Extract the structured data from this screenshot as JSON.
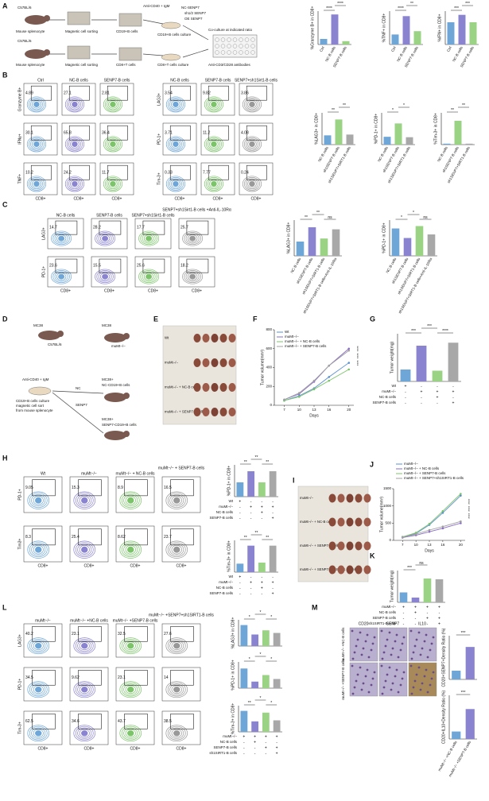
{
  "figure": {
    "letters": [
      "A",
      "B",
      "C",
      "D",
      "E",
      "F",
      "G",
      "H",
      "I",
      "J",
      "K",
      "L",
      "M"
    ],
    "schematic_a": [
      "C57BL/6",
      "Mouse splenocyte",
      "Magnetic cell sorting",
      "CD19+B cells",
      "Anti-CD40 + IgM",
      "NC-SENP7",
      "sh1/2 SENP7",
      "OE SENP7",
      "CD19+B cells culture",
      "Co-culture at indicated ratio",
      "C57BL/6",
      "Mouse splenocyte",
      "Magnetic cell sorting",
      "CD8+T cells",
      "CD8+T cells culture",
      "Anti-CD3/CD28 antibodies"
    ],
    "schematic_d": [
      "MC38",
      "C57BL/6",
      "MC38",
      "muMt−/−",
      "Anti-CD40 + IgM",
      "NC",
      "SENP7",
      "CD19+B cells culture",
      "magnetic cell sort",
      "from mouse splenocyte",
      "MC38+",
      "NC-CD19+B cells",
      "MC38+",
      "SENP7-CD19+B cells"
    ],
    "flow_b_left": {
      "columns": [
        "Ctrl",
        "NC-B cells",
        "SENP7-B cells"
      ],
      "rows": [
        "Granzyme B+",
        "IFNγ+",
        "TNF+"
      ],
      "x_label": "CD8+",
      "colors": [
        "#6ea6d8",
        "#8a84d0",
        "#7cc46a"
      ],
      "gates": [
        [
          4.89,
          27.1,
          2.81
        ],
        [
          30.1,
          65.8,
          36.4
        ],
        [
          10.2,
          24.2,
          11.7
        ]
      ]
    },
    "flow_b_right": {
      "columns": [
        "NC-B cells",
        "SENP7-B cells",
        "SENP7+sh1Sirt1-B cells"
      ],
      "rows": [
        "LAG3+",
        "PD-1+",
        "Tim-3+"
      ],
      "x_label": "CD8+",
      "colors": [
        "#6ea6d8",
        "#7cc46a",
        "#999999"
      ],
      "gates": [
        [
          3.54,
          9.82,
          3.86
        ],
        [
          3.71,
          11.2,
          4.08
        ],
        [
          0.33,
          7.77,
          0.24
        ]
      ]
    },
    "flow_c": {
      "columns": [
        "NC-B cells",
        "SENP7-B cells",
        "SENP7+sh1Sirt1-B cells",
        "SENP7+sh1Sirt1-B cells +Anti-IL-10Rα"
      ],
      "rows": [
        "LAG3+",
        "PD-1+"
      ],
      "x_label": "CD8+",
      "colors": [
        "#6ea6d8",
        "#8a84d0",
        "#7cc46a",
        "#999999"
      ],
      "gates": [
        [
          14.7,
          28.2,
          17.7,
          25.7
        ],
        [
          23.6,
          15.5,
          25.6,
          18.2
        ]
      ]
    },
    "flow_h": {
      "columns": [
        "Wt",
        "muMt−/−",
        "muMt−/− + NC-B cells",
        "muMt−/− + SENP7-B cells"
      ],
      "rows": [
        "PD-1+",
        "Tim3+"
      ],
      "x_label": "CD8+",
      "colors": [
        "#6ea6d8",
        "#8a84d0",
        "#7cc46a",
        "#999999"
      ],
      "gates": [
        [
          9.05,
          15.3,
          8.9,
          16.5
        ],
        [
          8.3,
          25.4,
          8.62,
          23.7
        ]
      ]
    },
    "flow_l": {
      "columns": [
        "muMt−/−",
        "muMt−/− +NC-B cells",
        "muMt−/− +SENP7-B cells",
        "muMt−/− +SENP7+sh1SIRT1-B cells"
      ],
      "rows": [
        "LAG3+",
        "PD-1+",
        "Tim-3+"
      ],
      "x_label": "CD8+",
      "colors": [
        "#6ea6d8",
        "#8a84d0",
        "#7cc46a",
        "#999999"
      ],
      "gates": [
        [
          40.2,
          23.1,
          32.5,
          27.6
        ],
        [
          34.5,
          9.62,
          23.1,
          14
        ],
        [
          62.5,
          34.6,
          43.7,
          38.5
        ]
      ]
    },
    "bars_a": [
      {
        "ylabel": "%Granzyme B+ in CD8+",
        "categories": [
          "Ctrl",
          "NC-B cells",
          "SENP7-B cells"
        ],
        "values": [
          5,
          27,
          3
        ],
        "ylim": [
          0,
          30
        ],
        "colors": [
          "#6ea6d8",
          "#8a84d0",
          "#9bd384"
        ],
        "sig": [
          "****",
          "****"
        ]
      },
      {
        "ylabel": "%TNF+ in CD8+",
        "categories": [
          "Ctrl",
          "NC-B cells",
          "SENP7-B cells"
        ],
        "values": [
          3,
          8.5,
          4
        ],
        "ylim": [
          0,
          10
        ],
        "colors": [
          "#6ea6d8",
          "#8a84d0",
          "#9bd384"
        ],
        "sig": [
          "****",
          "**"
        ]
      },
      {
        "ylabel": "%IFN+ in CD8+",
        "categories": [
          "Ctrl",
          "NC-B cells",
          "SENP7-B cells"
        ],
        "values": [
          30,
          40,
          30
        ],
        "ylim": [
          0,
          45
        ],
        "colors": [
          "#6ea6d8",
          "#8a84d0",
          "#9bd384"
        ],
        "sig": [
          "***",
          "***"
        ]
      }
    ],
    "bars_b": [
      {
        "ylabel": "%LAG3+ in CD8+",
        "categories": [
          "NC-B cells",
          "sh1SENP7-B cells",
          "sh1SENP7+SIRT1-B cells"
        ],
        "values": [
          3.5,
          9.5,
          3.8
        ],
        "ylim": [
          0,
          12
        ],
        "colors": [
          "#6ea6d8",
          "#9bd384",
          "#a8a8a8"
        ],
        "sig": [
          "**",
          "**"
        ]
      },
      {
        "ylabel": "%PD-1+ in CD8+",
        "categories": [
          "NC-B cells",
          "sh1SENP7-B cells",
          "sh1SENP7+SIRT1-B cells"
        ],
        "values": [
          3.7,
          10,
          3.5
        ],
        "ylim": [
          0,
          15
        ],
        "colors": [
          "#6ea6d8",
          "#9bd384",
          "#a8a8a8"
        ],
        "sig": [
          "*",
          "*"
        ]
      },
      {
        "ylabel": "%Tim-3+ in CD8+",
        "categories": [
          "NC-B cells",
          "sh1SENP7-B cells",
          "sh1SENP7+SIRT1-B cells"
        ],
        "values": [
          0.3,
          7.5,
          0.3
        ],
        "ylim": [
          0,
          10
        ],
        "colors": [
          "#6ea6d8",
          "#9bd384",
          "#a8a8a8"
        ],
        "sig": [
          "**",
          "**"
        ]
      }
    ],
    "bars_c": [
      {
        "ylabel": "%LAG3+ in CD8+",
        "categories": [
          "NC-B cells",
          "sh1SENP7-B cells",
          "sh1SENP7+SIRT1-B cells",
          "sh1SENP7+SIRT1-B cells+Anti-IL-10Rα"
        ],
        "values": [
          14,
          28,
          17,
          26
        ],
        "ylim": [
          0,
          35
        ],
        "colors": [
          "#6ea6d8",
          "#8a84d0",
          "#9bd384",
          "#a8a8a8"
        ],
        "sig": [
          "**",
          "**",
          "ns"
        ]
      },
      {
        "ylabel": "%PD-1+ in CD8+",
        "categories": [
          "NC-B cells",
          "sh1SENP7-B cells",
          "sh1SENP7+SIRT1-B cells",
          "sh1SENP7+SIRT1-B cells+Anti-IL-10Rα"
        ],
        "values": [
          23,
          15,
          25,
          18
        ],
        "ylim": [
          0,
          30
        ],
        "colors": [
          "#6ea6d8",
          "#8a84d0",
          "#9bd384",
          "#a8a8a8"
        ],
        "sig": [
          "*",
          "*",
          "ns"
        ]
      }
    ],
    "image_e": {
      "labels": [
        "Wt",
        "muMt−/−",
        "muMt−/− + NC-B cells",
        "muMt−/− + SENP7-B cells"
      ]
    },
    "line_f": {
      "type": "line",
      "ylabel": "Tumor volume(mm³)",
      "xlabel": "Days",
      "x": [
        7,
        10,
        13,
        16,
        20
      ],
      "xlim": [
        5,
        21
      ],
      "xticks": [
        7,
        10,
        13,
        16,
        20
      ],
      "ylim": [
        0,
        800
      ],
      "yticks": [
        0,
        200,
        400,
        600,
        800
      ],
      "sig": [
        "****",
        "****",
        "****"
      ],
      "series": [
        {
          "name": "Wt",
          "color": "#5b8fd0",
          "values": [
            50,
            100,
            180,
            300,
            450
          ]
        },
        {
          "name": "muMt−/−",
          "color": "#8a6cc6",
          "values": [
            60,
            120,
            250,
            420,
            600
          ]
        },
        {
          "name": "muMt−/− + NC-B cells",
          "color": "#7cc46a",
          "values": [
            50,
            90,
            170,
            260,
            380
          ]
        },
        {
          "name": "muMt−/− + SENP7-B cells",
          "color": "#a0a0a0",
          "values": [
            60,
            130,
            260,
            420,
            580
          ]
        }
      ]
    },
    "bars_g": {
      "ylabel": "Tumor weight(mg)",
      "values": [
        200,
        600,
        180,
        650
      ],
      "ylim": [
        0,
        800
      ],
      "colors": [
        "#6ea6d8",
        "#8a84d0",
        "#9bd384",
        "#a8a8a8"
      ],
      "sig": [
        "***",
        "***",
        "****"
      ],
      "table": [
        {
          "label": "Wt",
          "marks": [
            "+",
            "-",
            "-",
            "-"
          ]
        },
        {
          "label": "muMt−/−",
          "marks": [
            "-",
            "+",
            "+",
            "+"
          ]
        },
        {
          "label": "NC-B cells",
          "marks": [
            "-",
            "-",
            "+",
            "-"
          ]
        },
        {
          "label": "SENP7-B cells",
          "marks": [
            "-",
            "-",
            "-",
            "+"
          ]
        }
      ]
    },
    "bars_h": [
      {
        "ylabel": "%PD-1+ in CD8+",
        "values": [
          9,
          16,
          9,
          16
        ],
        "ylim": [
          0,
          20
        ],
        "colors": [
          "#6ea6d8",
          "#8a84d0",
          "#9bd384",
          "#a8a8a8"
        ],
        "sig": [
          "**",
          "**",
          "**"
        ],
        "table": [
          {
            "label": "Wt",
            "marks": [
              "+",
              "-",
              "-",
              "-"
            ]
          },
          {
            "label": "muMt−/−",
            "marks": [
              "-",
              "+",
              "+",
              "+"
            ]
          },
          {
            "label": "NC-B cells",
            "marks": [
              "-",
              "-",
              "+",
              "-"
            ]
          },
          {
            "label": "SENP7-B cells",
            "marks": [
              "-",
              "-",
              "-",
              "+"
            ]
          }
        ]
      },
      {
        "ylabel": "%Tim-3+ in CD8+",
        "values": [
          8,
          25,
          9,
          25
        ],
        "ylim": [
          0,
          30
        ],
        "colors": [
          "#6ea6d8",
          "#8a84d0",
          "#9bd384",
          "#a8a8a8"
        ],
        "sig": [
          "**",
          "**",
          "**"
        ],
        "table": [
          {
            "label": "Wt",
            "marks": [
              "+",
              "-",
              "-",
              "-"
            ]
          },
          {
            "label": "muMt−/−",
            "marks": [
              "-",
              "+",
              "+",
              "+"
            ]
          },
          {
            "label": "NC-B cells",
            "marks": [
              "-",
              "-",
              "+",
              "-"
            ]
          },
          {
            "label": "SENP7-B cells",
            "marks": [
              "-",
              "-",
              "-",
              "+"
            ]
          }
        ]
      }
    ],
    "image_i": {
      "labels": [
        "muMt−/−",
        "muMt−/− + NC-B cells",
        "muMt−/− + SENP7-B cells",
        "muMt−/− + SENP7+sh1SIRT1 -B cells"
      ]
    },
    "line_j": {
      "type": "line",
      "ylabel": "Tumor volume(mm³)",
      "xlabel": "Days",
      "x": [
        7,
        10,
        13,
        16,
        20
      ],
      "xlim": [
        5,
        21
      ],
      "xticks": [
        7,
        10,
        13,
        16,
        20
      ],
      "ylim": [
        0,
        1500
      ],
      "yticks": [
        0,
        500,
        1000,
        1500
      ],
      "sig": [
        "****",
        "****",
        "****"
      ],
      "series": [
        {
          "name": "muMt−/−",
          "color": "#5b8fd0",
          "values": [
            100,
            200,
            450,
            800,
            1300
          ]
        },
        {
          "name": "muMt−/− + NC-B cells",
          "color": "#8a6cc6",
          "values": [
            80,
            150,
            250,
            350,
            500
          ]
        },
        {
          "name": "muMt−/− + SENP7-B cells",
          "color": "#7cc46a",
          "values": [
            100,
            220,
            480,
            850,
            1350
          ]
        },
        {
          "name": "muMt−/− + SENP7+sh1SIRT1-B cells",
          "color": "#a0a0a0",
          "values": [
            90,
            180,
            300,
            400,
            550
          ]
        }
      ]
    },
    "bars_k": {
      "ylabel": "Tumor weight(mg)",
      "values": [
        250,
        120,
        600,
        580
      ],
      "ylim": [
        0,
        800
      ],
      "colors": [
        "#6ea6d8",
        "#8a84d0",
        "#9bd384",
        "#a8a8a8"
      ],
      "sig": [
        "***",
        "ns"
      ],
      "table": [
        {
          "label": "muMt−/−",
          "marks": [
            "+",
            "+",
            "+",
            "+"
          ]
        },
        {
          "label": "NC-B cells",
          "marks": [
            "-",
            "+",
            "-",
            "-"
          ]
        },
        {
          "label": "SENP7-B cells",
          "marks": [
            "-",
            "-",
            "+",
            "+"
          ]
        },
        {
          "label": "sh1SIRT1-B cells",
          "marks": [
            "-",
            "-",
            "-",
            "+"
          ]
        }
      ]
    },
    "bars_l": [
      {
        "ylabel": "%LAG3+ in CD8+",
        "values": [
          40,
          22,
          30,
          25
        ],
        "ylim": [
          0,
          50
        ],
        "colors": [
          "#6ea6d8",
          "#8a84d0",
          "#9bd384",
          "#a8a8a8"
        ],
        "sig": [
          "*",
          "*",
          "*"
        ]
      },
      {
        "ylabel": "%PD-1+ in CD8+",
        "values": [
          30,
          10,
          20,
          14
        ],
        "ylim": [
          0,
          40
        ],
        "colors": [
          "#6ea6d8",
          "#8a84d0",
          "#9bd384",
          "#a8a8a8"
        ],
        "sig": [
          "*",
          "*",
          "*"
        ]
      },
      {
        "ylabel": "%Tim-3+ in CD8+",
        "values": [
          60,
          30,
          55,
          33
        ],
        "ylim": [
          0,
          75
        ],
        "colors": [
          "#6ea6d8",
          "#8a84d0",
          "#9bd384",
          "#a8a8a8"
        ],
        "sig": [
          "**",
          "*",
          "*"
        ],
        "table": [
          {
            "label": "muMt−/−",
            "marks": [
              "+",
              "+",
              "+",
              "+"
            ]
          },
          {
            "label": "NC-B cells",
            "marks": [
              "-",
              "+",
              "-",
              "-"
            ]
          },
          {
            "label": "SENP7-B cells",
            "marks": [
              "-",
              "-",
              "+",
              "+"
            ]
          },
          {
            "label": "sh1SIRT1-B cells",
            "marks": [
              "-",
              "-",
              "-",
              "+"
            ]
          }
        ]
      }
    ],
    "image_m": {
      "columns": [
        "CD20",
        "SENP7",
        "IL10"
      ],
      "rows": [
        "muMt−/− +NC-B cells",
        "muMt−/− +SENP7-B cells"
      ]
    },
    "bars_m": [
      {
        "ylabel": "CD20+SENP7+Density Ratio (%)",
        "values": [
          7,
          26
        ],
        "ylim": [
          0,
          35
        ],
        "colors": [
          "#6ea6d8",
          "#8a84d0"
        ],
        "sig": [
          "***"
        ]
      },
      {
        "ylabel": "CD20+IL10+Density Ratio (%)",
        "categories": [
          "muMt−/− +NC-B cells",
          "muMt−/− +SENP7-B cells"
        ],
        "values": [
          6,
          24
        ],
        "ylim": [
          0,
          35
        ],
        "colors": [
          "#6ea6d8",
          "#8a84d0"
        ],
        "sig": [
          "***"
        ]
      }
    ]
  }
}
